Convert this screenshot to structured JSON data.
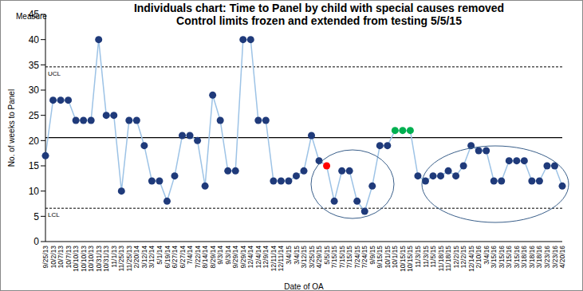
{
  "chart_data": {
    "type": "line",
    "title": "Individuals chart: Time to Panel by child with special causes removed",
    "subtitle": "Control limits  frozen and extended from testing 5/5/15",
    "x_label": "Date of OA",
    "y_label": "No. of weeks to Panel",
    "annotations": [
      "Measure"
    ],
    "categories": [
      "9/25/13",
      "10/2/13",
      "10/7/13",
      "10/7/13",
      "10/10/13",
      "10/10/13",
      "10/10/13",
      "10/31/13",
      "10/31/13",
      "11/1/13",
      "11/25/13",
      "11/25/13",
      "2/20/14",
      "3/12/14",
      "3/12/14",
      "5/1/14",
      "6/19/14",
      "6/27/14",
      "6/27/14",
      "7/4/14",
      "7/22/14",
      "8/14/14",
      "8/29/14",
      "9/3/14",
      "9/3/14",
      "9/29/14",
      "9/29/14",
      "12/4/14",
      "12/4/14",
      "12/9/14",
      "12/11/14",
      "12/11/14",
      "3/4/15",
      "3/4/15",
      "3/12/15",
      "3/25/15",
      "4/29/15",
      "5/5/15",
      "7/15/15",
      "7/15/15",
      "7/15/15",
      "7/24/15",
      "7/24/15",
      "9/9/15",
      "9/15/15",
      "10/1/15",
      "10/1/15",
      "10/15/15",
      "10/15/15",
      "11/3/15",
      "11/3/15",
      "11/5/15",
      "11/18/15",
      "11/18/15",
      "12/2/15",
      "12/2/15",
      "12/14/15",
      "2/10/16",
      "3/4/16",
      "3/15/16",
      "3/15/16",
      "3/15/16",
      "3/15/16",
      "3/18/16",
      "3/18/16",
      "3/18/16",
      "3/23/16",
      "3/23/16",
      "4/20/16"
    ],
    "values": [
      17,
      28,
      28,
      28,
      24,
      24,
      24,
      40,
      25,
      25,
      10,
      24,
      24,
      19,
      12,
      12,
      8,
      13,
      21,
      21,
      20,
      11,
      29,
      24,
      14,
      14,
      40,
      40,
      24,
      24,
      12,
      12,
      12,
      13,
      14,
      21,
      16,
      15,
      8,
      14,
      14,
      8,
      6,
      11,
      19,
      19,
      22,
      22,
      22,
      13,
      12,
      13,
      13,
      14,
      13,
      15,
      19,
      18,
      18,
      12,
      12,
      16,
      16,
      16,
      12,
      12,
      15,
      15,
      11
    ],
    "color": "#9dc3e6",
    "marker": "circle",
    "colors": [
      "#1f3a7a",
      "#1f3a7a",
      "#1f3a7a",
      "#1f3a7a",
      "#1f3a7a",
      "#1f3a7a",
      "#1f3a7a",
      "#1f3a7a",
      "#1f3a7a",
      "#1f3a7a",
      "#1f3a7a",
      "#1f3a7a",
      "#1f3a7a",
      "#1f3a7a",
      "#1f3a7a",
      "#1f3a7a",
      "#1f3a7a",
      "#1f3a7a",
      "#1f3a7a",
      "#1f3a7a",
      "#1f3a7a",
      "#1f3a7a",
      "#1f3a7a",
      "#1f3a7a",
      "#1f3a7a",
      "#1f3a7a",
      "#1f3a7a",
      "#1f3a7a",
      "#1f3a7a",
      "#1f3a7a",
      "#1f3a7a",
      "#1f3a7a",
      "#1f3a7a",
      "#1f3a7a",
      "#1f3a7a",
      "#1f3a7a",
      "#1f3a7a",
      "#ff0000",
      "#1f3a7a",
      "#1f3a7a",
      "#1f3a7a",
      "#1f3a7a",
      "#1f3a7a",
      "#1f3a7a",
      "#1f3a7a",
      "#1f3a7a",
      "#00b050",
      "#00b050",
      "#00b050",
      "#1f3a7a",
      "#1f3a7a",
      "#1f3a7a",
      "#1f3a7a",
      "#1f3a7a",
      "#1f3a7a",
      "#1f3a7a",
      "#1f3a7a",
      "#1f3a7a",
      "#1f3a7a",
      "#1f3a7a",
      "#1f3a7a",
      "#1f3a7a",
      "#1f3a7a",
      "#1f3a7a",
      "#1f3a7a",
      "#1f3a7a",
      "#1f3a7a",
      "#1f3a7a",
      "#1f3a7a"
    ],
    "reference_lines": [
      {
        "value": 34.6,
        "label": "UCL",
        "line_style": "dashed"
      },
      {
        "value": 20.6,
        "line_style": "solid"
      },
      {
        "value": 6.6,
        "label": "LCL",
        "line_style": "dashed"
      }
    ],
    "ylim": [
      0,
      45
    ],
    "yticks": [
      0,
      5,
      10,
      15,
      20,
      25,
      30,
      35,
      40,
      45
    ],
    "grid": false,
    "legend": false
  }
}
